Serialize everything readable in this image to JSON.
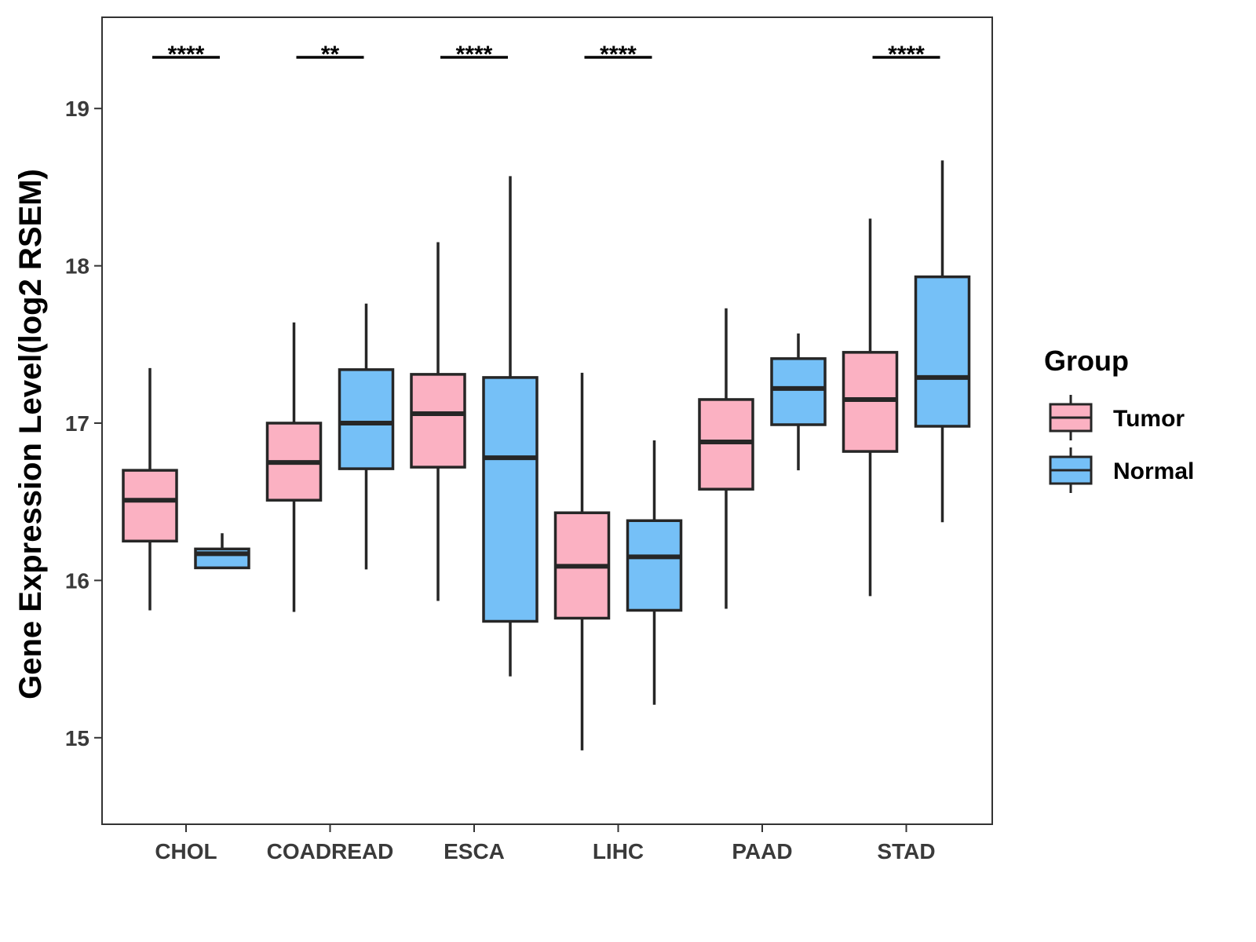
{
  "chart_data": {
    "type": "boxplot",
    "title": "",
    "xlabel": "",
    "ylabel": "Gene Expression Level(log2 RSEM)",
    "ylim": [
      14.45,
      19.58
    ],
    "yticks": [
      15,
      16,
      17,
      18,
      19
    ],
    "grid": false,
    "legend": {
      "title": "Group",
      "position": "right"
    },
    "categories": [
      "CHOL",
      "COADREAD",
      "ESCA",
      "LIHC",
      "PAAD",
      "STAD"
    ],
    "series": [
      {
        "name": "Tumor",
        "color": "#FBB1C2",
        "boxes": [
          {
            "min": 15.81,
            "q1": 16.25,
            "median": 16.51,
            "q3": 16.7,
            "max": 17.35
          },
          {
            "min": 15.8,
            "q1": 16.51,
            "median": 16.75,
            "q3": 17.0,
            "max": 17.64
          },
          {
            "min": 15.87,
            "q1": 16.72,
            "median": 17.06,
            "q3": 17.31,
            "max": 18.15
          },
          {
            "min": 14.92,
            "q1": 15.76,
            "median": 16.09,
            "q3": 16.43,
            "max": 17.32
          },
          {
            "min": 15.82,
            "q1": 16.58,
            "median": 16.88,
            "q3": 17.15,
            "max": 17.73
          },
          {
            "min": 15.9,
            "q1": 16.82,
            "median": 17.15,
            "q3": 17.45,
            "max": 18.3
          }
        ]
      },
      {
        "name": "Normal",
        "color": "#75C0F7",
        "boxes": [
          {
            "min": 16.08,
            "q1": 16.08,
            "median": 16.17,
            "q3": 16.2,
            "max": 16.3
          },
          {
            "min": 16.07,
            "q1": 16.71,
            "median": 17.0,
            "q3": 17.34,
            "max": 17.76
          },
          {
            "min": 15.39,
            "q1": 15.74,
            "median": 16.78,
            "q3": 17.29,
            "max": 18.57
          },
          {
            "min": 15.21,
            "q1": 15.81,
            "median": 16.15,
            "q3": 16.38,
            "max": 16.89
          },
          {
            "min": 16.7,
            "q1": 16.99,
            "median": 17.22,
            "q3": 17.41,
            "max": 17.57
          },
          {
            "min": 16.37,
            "q1": 16.98,
            "median": 17.29,
            "q3": 17.93,
            "max": 18.67
          }
        ]
      }
    ],
    "significance": [
      "****",
      "**",
      "****",
      "****",
      "",
      "****"
    ]
  }
}
